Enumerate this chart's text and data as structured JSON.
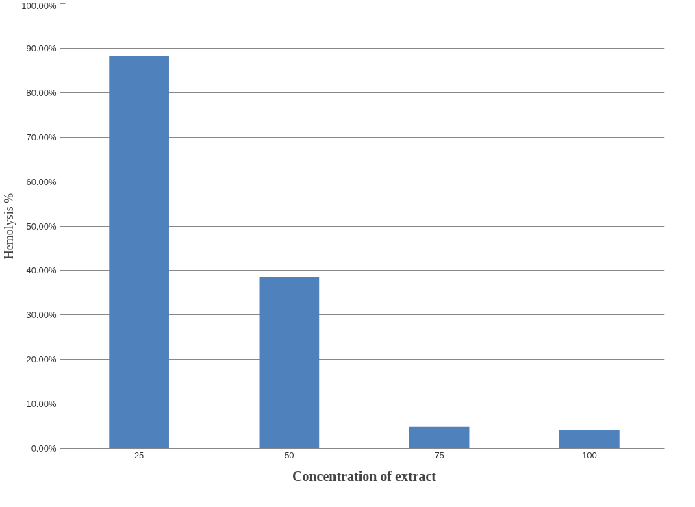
{
  "chart_data": {
    "type": "bar",
    "xlabel": "Concentration of extract",
    "ylabel": "Hemolysis %",
    "categories": [
      "25",
      "50",
      "75",
      "100"
    ],
    "values": [
      88.2,
      38.6,
      4.9,
      4.2
    ],
    "color": "#4f81bd",
    "ylim": [
      0,
      100
    ],
    "yticks": [
      {
        "value": 0,
        "label": "0.00%"
      },
      {
        "value": 10,
        "label": "10.00%"
      },
      {
        "value": 20,
        "label": "20.00%"
      },
      {
        "value": 30,
        "label": "30.00%"
      },
      {
        "value": 40,
        "label": "40.00%"
      },
      {
        "value": 50,
        "label": "50.00%"
      },
      {
        "value": 60,
        "label": "60.00%"
      },
      {
        "value": 70,
        "label": "70.00%"
      },
      {
        "value": 80,
        "label": "80.00%"
      },
      {
        "value": 90,
        "label": "90.00%"
      },
      {
        "value": 100,
        "label": "100.00%"
      }
    ],
    "grid": "y"
  }
}
